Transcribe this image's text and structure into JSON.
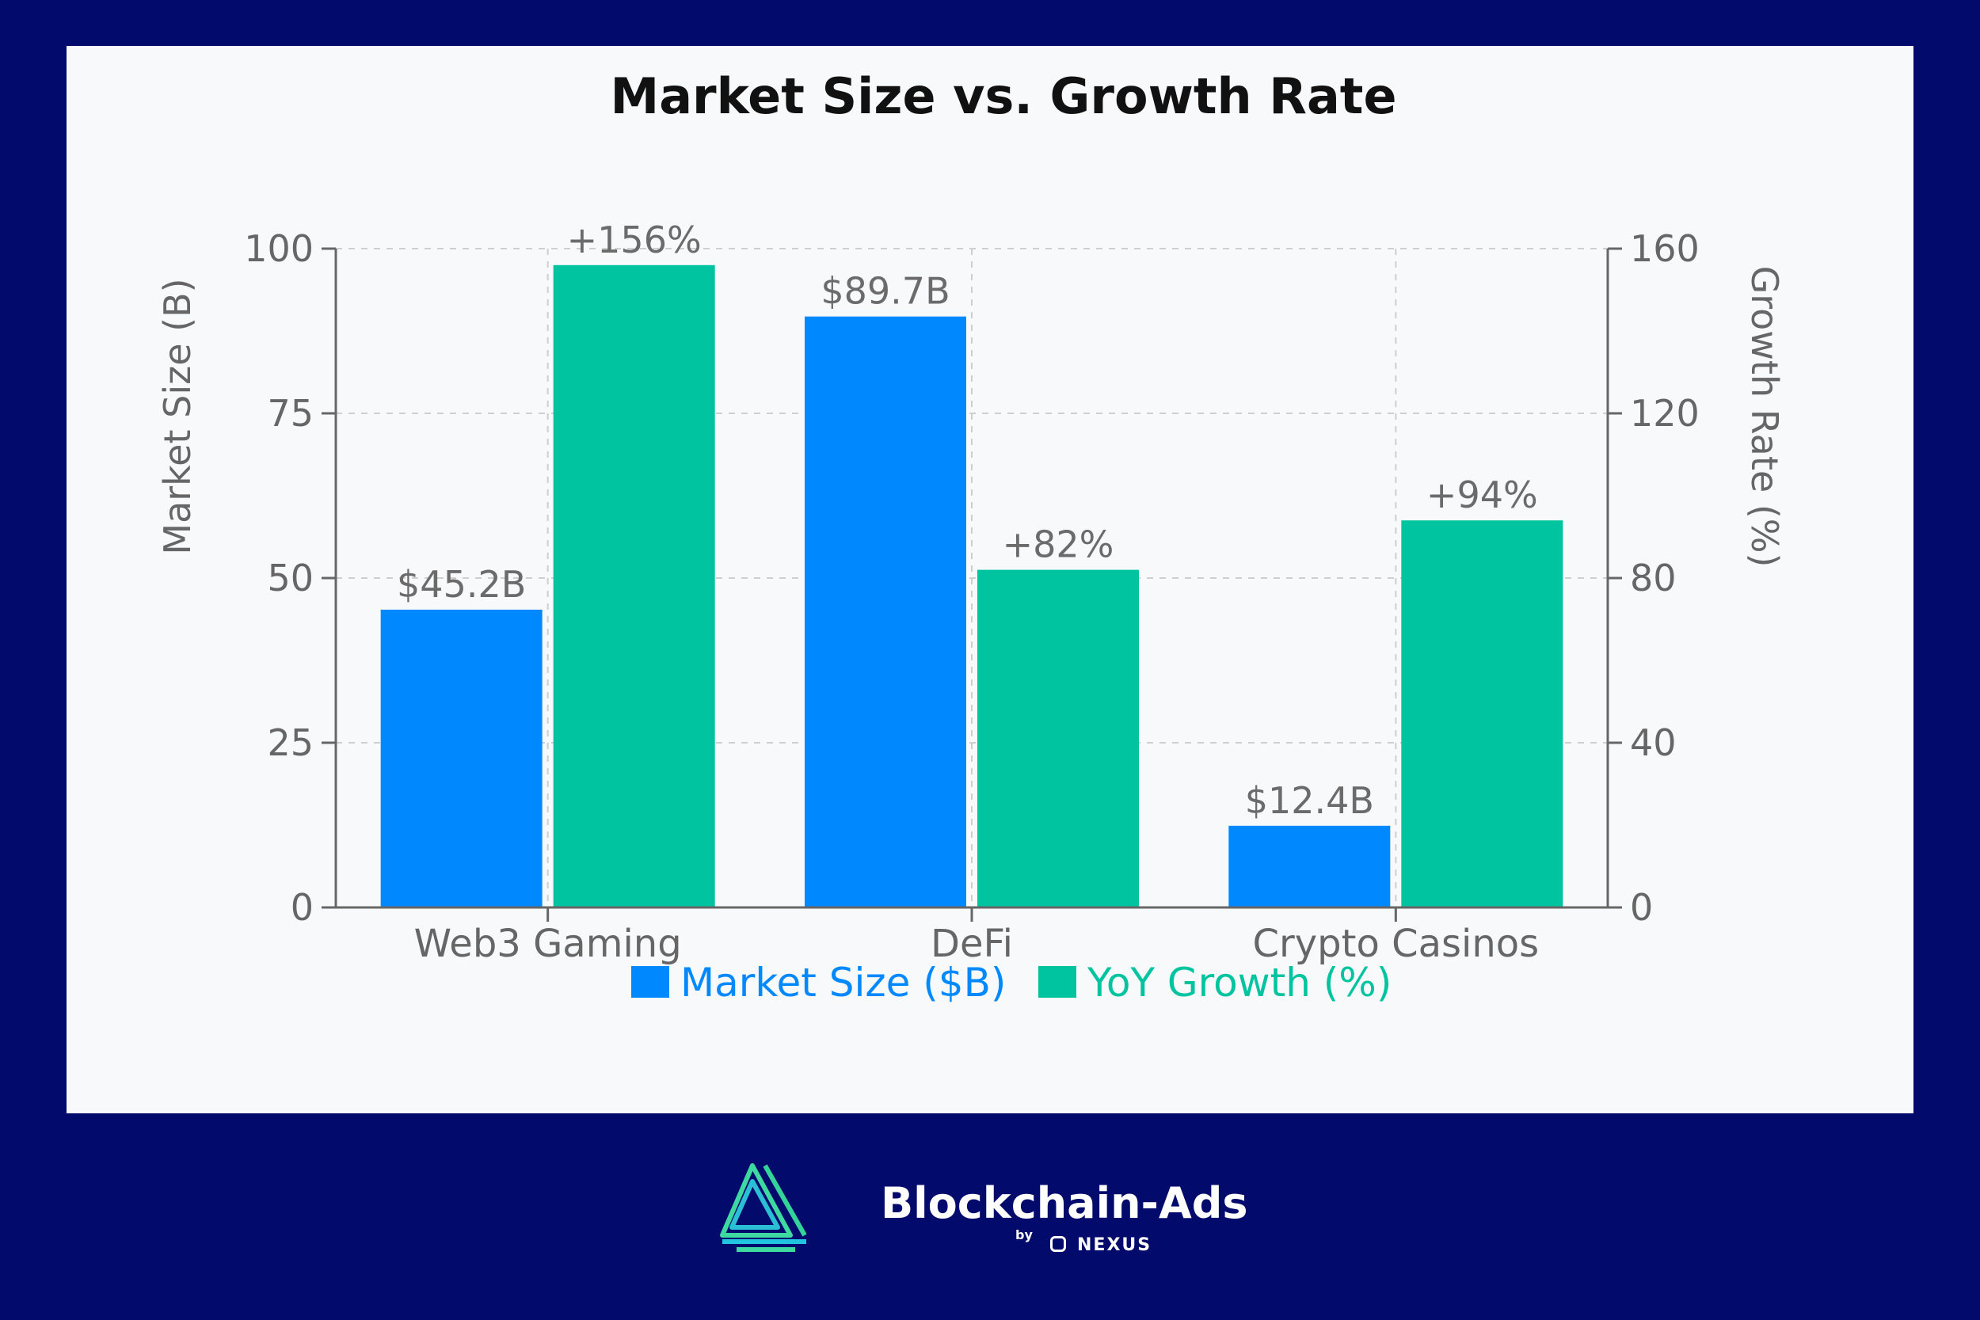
{
  "chart_data": {
    "type": "bar",
    "title": "Market Size vs. Growth Rate",
    "categories": [
      "Web3 Gaming",
      "DeFi",
      "Crypto Casinos"
    ],
    "y_left": {
      "label": "Market Size (B)",
      "range": [
        0,
        100
      ],
      "ticks": [
        0,
        25,
        50,
        75,
        100
      ]
    },
    "y_right": {
      "label": "Growth Rate (%)",
      "range": [
        0,
        160
      ],
      "ticks": [
        0,
        40,
        80,
        120,
        160
      ]
    },
    "grid": true,
    "legend_position": "bottom",
    "series": [
      {
        "name": "Market Size ($B)",
        "axis": "left",
        "color": "#0088ff",
        "values": [
          45.2,
          89.7,
          12.4
        ],
        "labels": [
          "$45.2B",
          "$89.7B",
          "$12.4B"
        ]
      },
      {
        "name": "YoY Growth (%)",
        "axis": "right",
        "color": "#00c49f",
        "values": [
          156,
          82,
          94
        ],
        "labels": [
          "+156%",
          "+82%",
          "+94%"
        ]
      }
    ]
  },
  "branding": {
    "name": "Blockchain-Ads",
    "by": "by",
    "partner": "NEXUS",
    "logo_icon": "blockchain-ads-logo-icon",
    "accent": "#3dd9a0"
  }
}
